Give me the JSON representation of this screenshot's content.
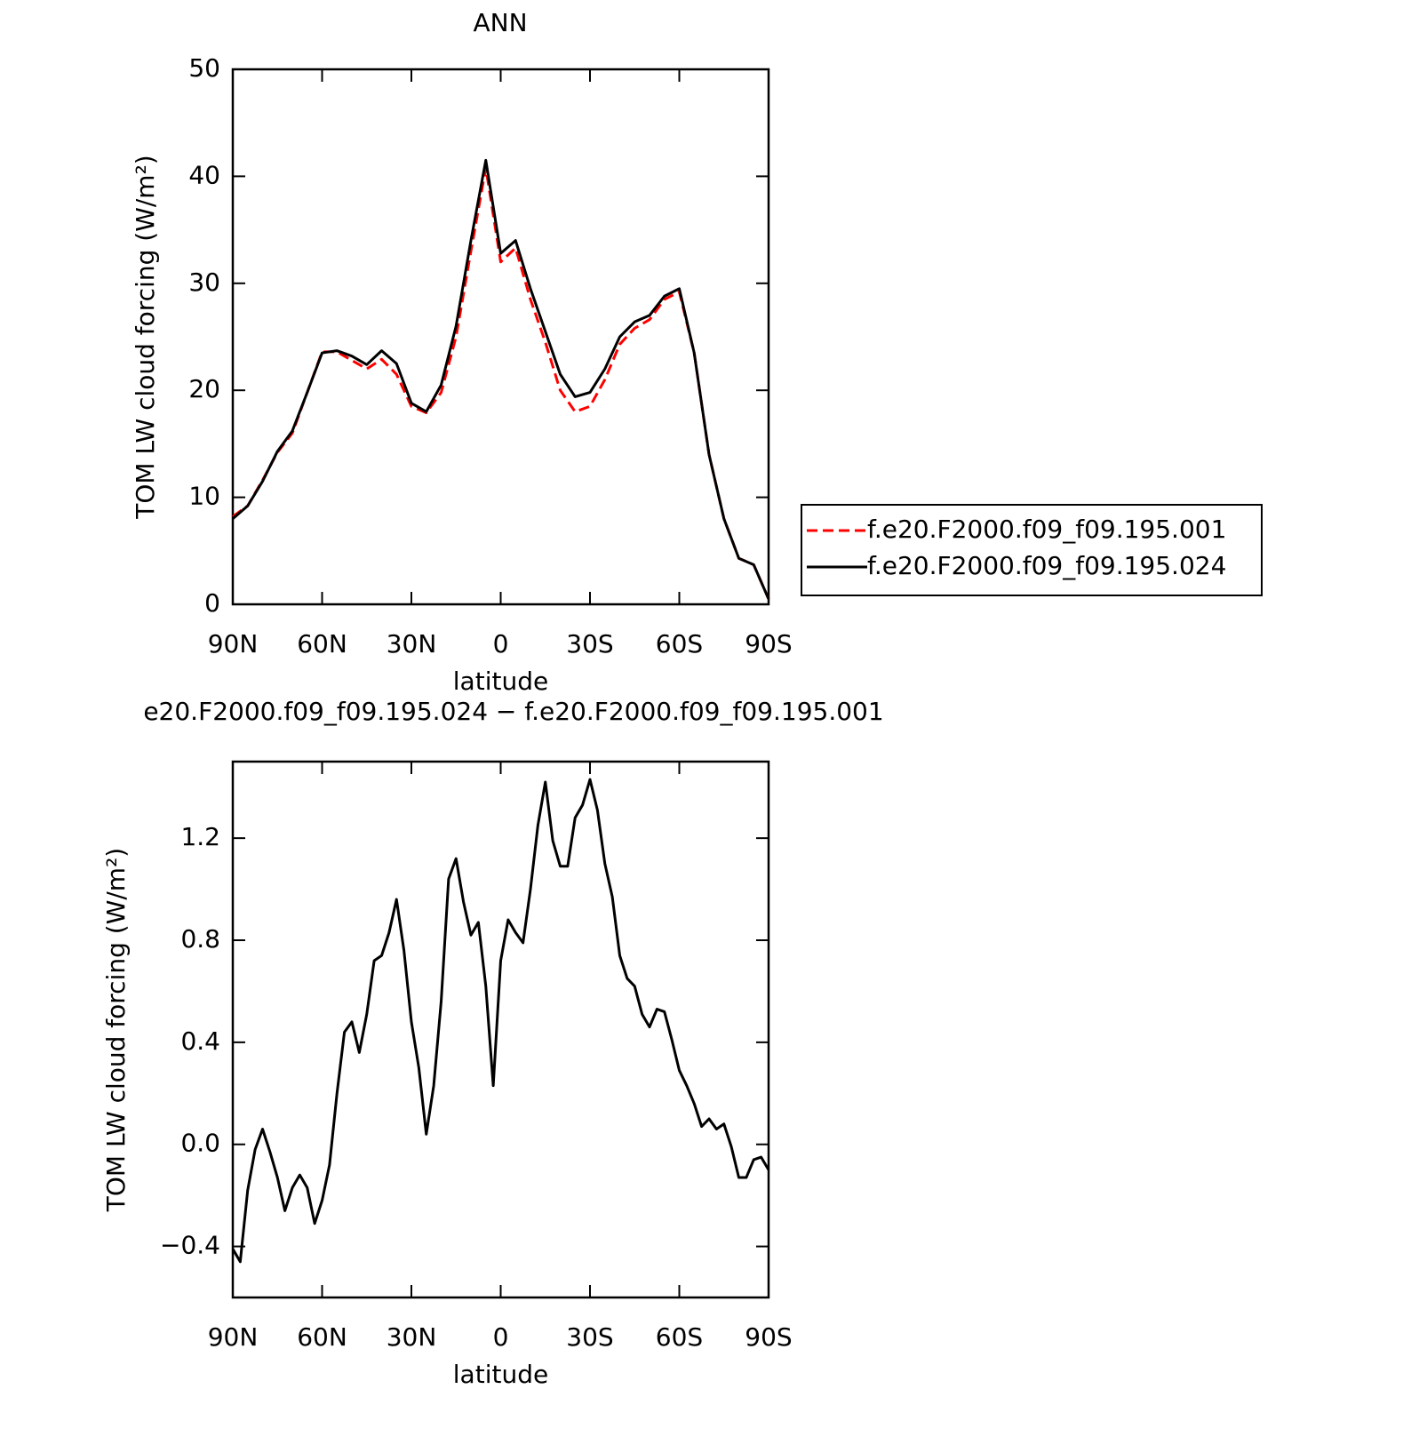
{
  "chart_data": [
    {
      "type": "line",
      "title": "ANN",
      "xlabel": "latitude",
      "ylabel": "TOM LW cloud forcing (W/m²)",
      "x": [
        90,
        85,
        80,
        75,
        70,
        65,
        60,
        55,
        50,
        45,
        40,
        35,
        30,
        25,
        20,
        15,
        10,
        5,
        0,
        -5,
        -10,
        -15,
        -20,
        -25,
        -30,
        -35,
        -40,
        -45,
        -50,
        -55,
        -60,
        -65,
        -70,
        -75,
        -80,
        -85,
        -90
      ],
      "series": [
        {
          "name": "f.e20.F2000.f09_f09.195.001",
          "color": "#ff0000",
          "style": "dashed",
          "values": [
            8.2,
            9.2,
            11.6,
            14.2,
            16,
            19.8,
            23.6,
            23.6,
            22.8,
            22,
            22.9,
            21.5,
            18.5,
            17.9,
            19.8,
            25,
            33,
            40.8,
            32,
            33.3,
            28.5,
            24.5,
            20,
            18,
            18.5,
            21,
            24.3,
            25.8,
            26.6,
            28.5,
            29.2,
            23.5,
            14,
            8,
            4.3,
            3.7,
            0.5
          ]
        },
        {
          "name": "f.e20.F2000.f09_f09.195.024",
          "color": "#000000",
          "style": "solid",
          "values": [
            8,
            9.2,
            11.5,
            14.3,
            16.2,
            19.8,
            23.5,
            23.7,
            23.2,
            22.4,
            23.7,
            22.5,
            18.8,
            18,
            20.5,
            26,
            34,
            41.5,
            32.8,
            34,
            29.5,
            25.5,
            21.5,
            19.4,
            19.8,
            22,
            25,
            26.4,
            27,
            28.8,
            29.5,
            23.5,
            14,
            8,
            4.3,
            3.7,
            0.5
          ]
        }
      ],
      "xlim": [
        90,
        -90
      ],
      "xticks": [
        {
          "value": 90,
          "label": "90N"
        },
        {
          "value": 60,
          "label": "60N"
        },
        {
          "value": 30,
          "label": "30N"
        },
        0,
        {
          "value": -30,
          "label": "30S"
        },
        {
          "value": -60,
          "label": "60S"
        },
        {
          "value": -90,
          "label": "90S"
        }
      ],
      "ylim": [
        0,
        50
      ],
      "yticks": [
        0,
        10,
        20,
        30,
        40,
        50
      ],
      "legend": "right"
    },
    {
      "type": "line",
      "title": "e20.F2000.f09_f09.195.024 − f.e20.F2000.f09_f09.195.001",
      "xlabel": "latitude",
      "ylabel": "TOM LW cloud forcing (W/m²)",
      "x": [
        90,
        87.5,
        85,
        82.5,
        80,
        77.5,
        75,
        72.5,
        70,
        67.5,
        65,
        62.5,
        60,
        57.5,
        55,
        52.5,
        50,
        47.5,
        45,
        42.5,
        40,
        37.5,
        35,
        32.5,
        30,
        27.5,
        25,
        22.5,
        20,
        17.5,
        15,
        12.5,
        10,
        7.5,
        5,
        2.5,
        0,
        -2.5,
        -5,
        -7.5,
        -10,
        -12.5,
        -15,
        -17.5,
        -20,
        -22.5,
        -25,
        -27.5,
        -30,
        -32.5,
        -35,
        -37.5,
        -40,
        -42.5,
        -45,
        -47.5,
        -50,
        -52.5,
        -55,
        -57.5,
        -60,
        -62.5,
        -65,
        -67.5,
        -70,
        -72.5,
        -75,
        -77.5,
        -80,
        -82.5,
        -85,
        -87.5,
        -90
      ],
      "values": [
        -0.41,
        -0.46,
        -0.18,
        -0.02,
        0.06,
        -0.03,
        -0.13,
        -0.26,
        -0.17,
        -0.12,
        -0.17,
        -0.31,
        -0.22,
        -0.08,
        0.2,
        0.44,
        0.48,
        0.36,
        0.51,
        0.72,
        0.74,
        0.83,
        0.96,
        0.76,
        0.48,
        0.3,
        0.04,
        0.23,
        0.56,
        1.04,
        1.12,
        0.95,
        0.82,
        0.87,
        0.62,
        0.23,
        0.72,
        0.88,
        0.83,
        0.79,
        1.0,
        1.25,
        1.42,
        1.19,
        1.09,
        1.09,
        1.28,
        1.33,
        1.43,
        1.31,
        1.1,
        0.97,
        0.74,
        0.65,
        0.62,
        0.51,
        0.46,
        0.53,
        0.52,
        0.41,
        0.29,
        0.23,
        0.16,
        0.07,
        0.1,
        0.06,
        0.08,
        -0.01,
        -0.13,
        -0.13,
        -0.06,
        -0.05,
        -0.1
      ],
      "color": "#000000",
      "xlim": [
        90,
        -90
      ],
      "xticks": [
        {
          "value": 90,
          "label": "90N"
        },
        {
          "value": 60,
          "label": "60N"
        },
        {
          "value": 30,
          "label": "30N"
        },
        0,
        {
          "value": -30,
          "label": "30S"
        },
        {
          "value": -60,
          "label": "60S"
        },
        {
          "value": -90,
          "label": "90S"
        }
      ],
      "ylim": [
        -0.6,
        1.5
      ],
      "yticks": [
        {
          "value": -0.4,
          "label": "−0.4"
        },
        {
          "value": 0,
          "label": "0.0"
        },
        0.4,
        0.8,
        1.2
      ]
    }
  ]
}
